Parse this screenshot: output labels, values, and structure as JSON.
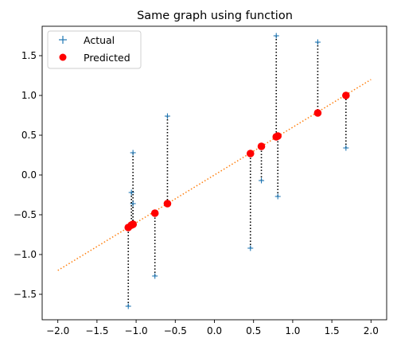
{
  "chart_data": {
    "type": "scatter",
    "title": "Same graph using function",
    "xlim": [
      -2.2,
      2.2
    ],
    "ylim": [
      -1.82,
      1.87
    ],
    "xticks": [
      -2.0,
      -1.5,
      -1.0,
      -0.5,
      0.0,
      0.5,
      1.0,
      1.5,
      2.0
    ],
    "xtick_labels": [
      "−2.0",
      "−1.5",
      "−1.0",
      "−0.5",
      "0.0",
      "0.5",
      "1.0",
      "1.5",
      "2.0"
    ],
    "yticks": [
      -1.5,
      -1.0,
      -0.5,
      0.0,
      0.5,
      1.0,
      1.5
    ],
    "ytick_labels": [
      "−1.5",
      "−1.0",
      "−0.5",
      "0.0",
      "0.5",
      "1.0",
      "1.5"
    ],
    "legend_position": "top-left",
    "series": [
      {
        "name": "Actual",
        "marker": "plus",
        "color": "#1f77b4",
        "x": [
          -1.1,
          -1.06,
          -1.04,
          -1.04,
          -0.76,
          -0.6,
          0.46,
          0.6,
          0.79,
          0.81,
          1.32,
          1.68
        ],
        "y": [
          -1.65,
          -0.22,
          -0.36,
          0.28,
          -1.27,
          0.74,
          -0.92,
          -0.07,
          1.75,
          -0.27,
          1.67,
          0.34
        ]
      },
      {
        "name": "Predicted",
        "marker": "circle",
        "color": "#ff0000",
        "x": [
          -1.1,
          -1.06,
          -1.04,
          -1.04,
          -0.76,
          -0.6,
          0.46,
          0.6,
          0.79,
          0.81,
          1.32,
          1.68
        ],
        "y": [
          -0.66,
          -0.63,
          -0.62,
          -0.62,
          -0.48,
          -0.36,
          0.27,
          0.36,
          0.48,
          0.49,
          0.78,
          1.0
        ]
      }
    ],
    "fit_line": {
      "x": [
        -2.0,
        2.0
      ],
      "y": [
        -1.2,
        1.2
      ],
      "style": "dotted",
      "color": "#ff7f0e"
    },
    "residual_lines": {
      "style": "dotted",
      "color": "#000000"
    }
  }
}
